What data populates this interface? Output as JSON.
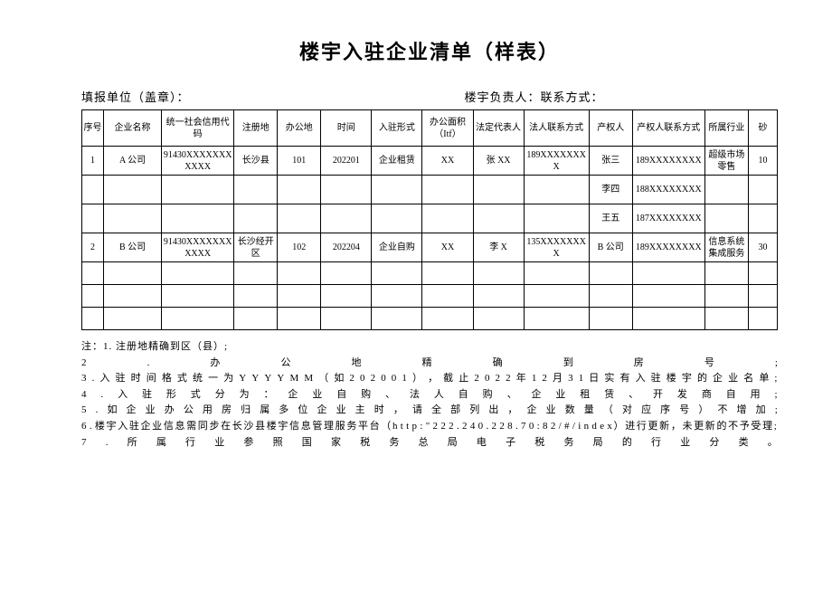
{
  "title": "楼宇入驻企业清单（样表）",
  "header": {
    "left": "填报单位（盖章）：",
    "right": "楼宇负责人：联系方式："
  },
  "table": {
    "columns": [
      {
        "label": "序号",
        "width": "3%"
      },
      {
        "label": "企业名称",
        "width": "8%"
      },
      {
        "label": "统一社会信用代码",
        "width": "10%"
      },
      {
        "label": "注册地",
        "width": "6%"
      },
      {
        "label": "办公地",
        "width": "6%"
      },
      {
        "label": "时间",
        "width": "7%"
      },
      {
        "label": "入驻形式",
        "width": "7%"
      },
      {
        "label": "办公面积（Itf）",
        "width": "7%"
      },
      {
        "label": "法定代表人",
        "width": "7%"
      },
      {
        "label": "法人联系方式",
        "width": "9%"
      },
      {
        "label": "产权人",
        "width": "6%"
      },
      {
        "label": "产权人联系方式",
        "width": "10%"
      },
      {
        "label": "所属行业",
        "width": "6%"
      },
      {
        "label": "砂",
        "width": "4%"
      }
    ],
    "rows": [
      [
        "1",
        "A 公司",
        "91430XXXXXXXXXXX",
        "长沙县",
        "101",
        "202201",
        "企业租赁",
        "XX",
        "张 XX",
        "189XXXXXXXX",
        "张三",
        "189XXXXXXXX",
        "超级市场零售",
        "10"
      ],
      [
        "",
        "",
        "",
        "",
        "",
        "",
        "",
        "",
        "",
        "",
        "李四",
        "188XXXXXXXX",
        "",
        ""
      ],
      [
        "",
        "",
        "",
        "",
        "",
        "",
        "",
        "",
        "",
        "",
        "王五",
        "187XXXXXXXX",
        "",
        ""
      ],
      [
        "2",
        "B 公司",
        "91430XXXXXXXXXXX",
        "长沙经开区",
        "102",
        "202204",
        "企业自购",
        "XX",
        "李 X",
        "135XXXXXXXX",
        "B 公司",
        "189XXXXXXXX",
        "信息系统集成服务",
        "30"
      ]
    ],
    "emptyRows": 3
  },
  "notes": [
    "注：1. 注册地精确到区（县）;",
    "2 . 办 公 地 精 确 到 房 号 ;",
    "3 . 入 驻 时 间 格 式 统 一 为 Y Y Y Y M M （ 如 2 0 2 0 0 1 ） ， 截 止 2 0 2 2 年 1 2 月 3 1 日 实 有 入 驻 楼 宇 的 企 业 名 单 ;",
    "4 . 入 驻 形 式 分 为 ： 企 业 自 购 、 法 人 自 购 、 企 业 租 赁 、 开 发 商 自 用 ;",
    "5 . 如 企 业 办 公 用 房 归 属 多 位 企 业 主 时 ， 请 全 部 列 出 ， 企 业 数 量 （ 对 应 序 号 ） 不 增 加 ;",
    "6 . 楼宇入驻企业信息需同步在长沙县楼宇信息管理服务平台（h t t p : \" 2 2 2 . 2 4 0 . 2 2 8 . 7 0 : 8 2 / # / i n d e x）进行更新，未更新的不予受理;",
    "7 . 所 属 行 业 参 照 国 家 税 务 总 局 电 子 税 务 局 的 行 业 分 类 。"
  ]
}
